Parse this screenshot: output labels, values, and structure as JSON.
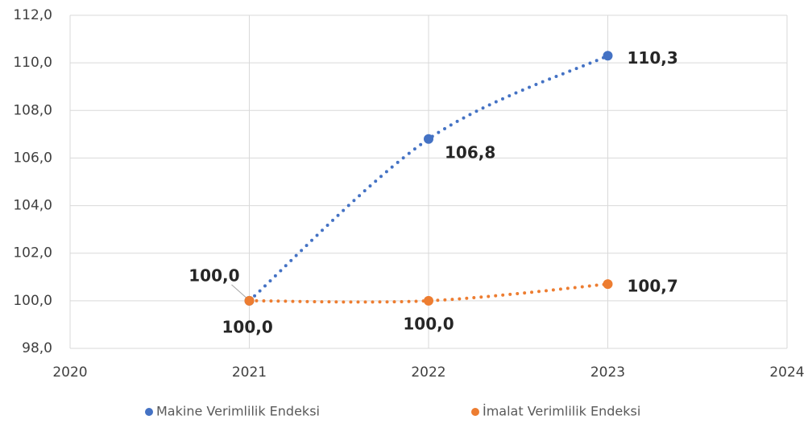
{
  "chart_data": {
    "type": "line",
    "x": [
      2021,
      2022,
      2023
    ],
    "series": [
      {
        "name": "Makine Verimlilik Endeksi",
        "color": "#4472c4",
        "values": [
          100.0,
          106.8,
          110.3
        ],
        "value_labels": [
          "100,0",
          "106,8",
          "110,3"
        ]
      },
      {
        "name": "İmalat Verimlilik Endeksi",
        "color": "#ed7d31",
        "values": [
          100.0,
          100.0,
          100.7
        ],
        "value_labels": [
          "100,0",
          "100,0",
          "100,7"
        ]
      }
    ],
    "xlim": [
      2020,
      2024
    ],
    "xticks": [
      2020,
      2021,
      2022,
      2023,
      2024
    ],
    "ylim": [
      98,
      112
    ],
    "yticks": [
      {
        "value": 98,
        "label": "98,0"
      },
      {
        "value": 100,
        "label": "100,0"
      },
      {
        "value": 102,
        "label": "102,0"
      },
      {
        "value": 104,
        "label": "104,0"
      },
      {
        "value": 106,
        "label": "106,0"
      },
      {
        "value": 108,
        "label": "108,0"
      },
      {
        "value": 110,
        "label": "110,0"
      },
      {
        "value": 112,
        "label": "112,0"
      }
    ],
    "grid": true,
    "line_style": "dotted",
    "legend": "bottom"
  }
}
